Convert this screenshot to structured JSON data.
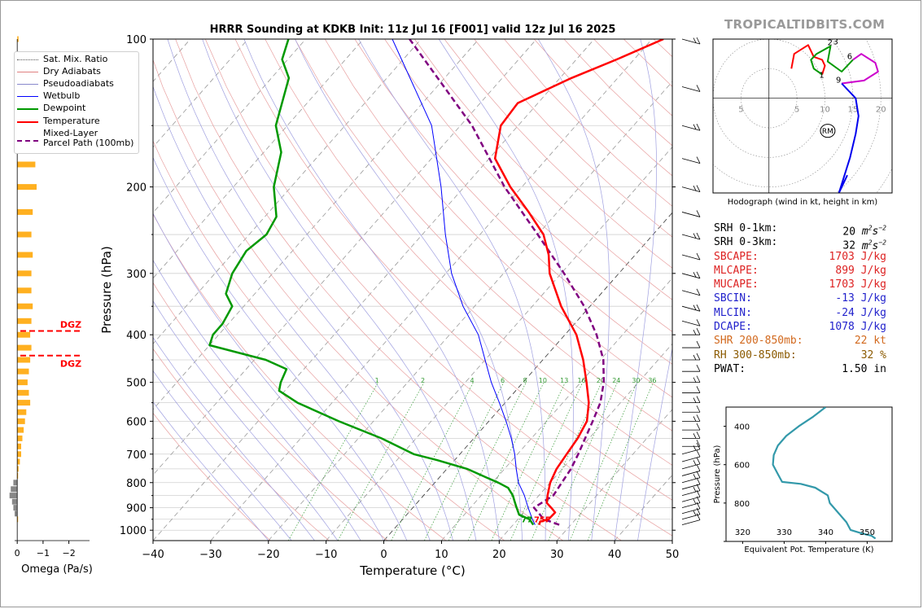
{
  "brand": "TROPICALTIDBITS.COM",
  "title": "HRRR Sounding at KDKB Init: 11z Jul 16 [F001] valid 12z Jul 16 2025",
  "skewt": {
    "xlabel": "Temperature (°C)",
    "ylabel": "Pressure (hPa)",
    "pressure_ticks": [
      "100",
      "200",
      "300",
      "400",
      "500",
      "600",
      "700",
      "800",
      "900",
      "1000"
    ],
    "temp_ticks": [
      "−40",
      "−30",
      "−20",
      "−10",
      "0",
      "10",
      "20",
      "30",
      "40",
      "50"
    ],
    "mix_ratio_labels": [
      "1",
      "2",
      "4",
      "6",
      "8",
      "10",
      "13",
      "16",
      "20",
      "24",
      "30",
      "36"
    ],
    "surface_temp_label": "75F",
    "surface_dew_label": "77",
    "legend": [
      {
        "label": "Sat. Mix. Ratio",
        "color": "#555555",
        "style": "dotted"
      },
      {
        "label": "Dry Adiabats",
        "color": "#e08080",
        "style": "solid"
      },
      {
        "label": "Pseudoadiabats",
        "color": "#8888cc",
        "style": "solid"
      },
      {
        "label": "Wetbulb",
        "color": "#0000ff",
        "style": "solid"
      },
      {
        "label": "Dewpoint",
        "color": "#009900",
        "style": "solid"
      },
      {
        "label": "Temperature",
        "color": "#ff0000",
        "style": "solid"
      },
      {
        "label": "Mixed-Layer\nParcel Path (100mb)",
        "color": "#800080",
        "style": "dashed"
      }
    ]
  },
  "omega": {
    "xlabel": "Omega (Pa/s)",
    "ticks": [
      "0",
      "−1",
      "−2"
    ],
    "dgz_label": "DGZ"
  },
  "hodograph": {
    "caption": "Hodograph (wind in kt, height in km)",
    "ring_labels": [
      "5",
      "5",
      "10",
      "15",
      "20"
    ],
    "height_labels": [
      "1",
      "2",
      "3",
      "6",
      "9"
    ],
    "rm_label": "RM"
  },
  "theta_e": {
    "xlabel": "Equivalent Pot. Temperature (K)",
    "ylabel": "Pressure (hPa)",
    "xticks": [
      "320",
      "330",
      "340",
      "350"
    ],
    "yticks": [
      "400",
      "600",
      "800"
    ]
  },
  "params": [
    {
      "label": "SRH 0-1km:",
      "value": "20",
      "unit": "m2s-2",
      "color": "#000000"
    },
    {
      "label": "SRH 0-3km:",
      "value": "32",
      "unit": "m2s-2",
      "color": "#000000"
    },
    {
      "label": "SBCAPE:",
      "value": "1703 J/kg",
      "color": "#dd2222"
    },
    {
      "label": "MLCAPE:",
      "value": "899 J/kg",
      "color": "#dd2222"
    },
    {
      "label": "MUCAPE:",
      "value": "1703 J/kg",
      "color": "#dd2222"
    },
    {
      "label": "SBCIN:",
      "value": "-13 J/kg",
      "color": "#2222cc"
    },
    {
      "label": "MLCIN:",
      "value": "-24 J/kg",
      "color": "#2222cc"
    },
    {
      "label": "DCAPE:",
      "value": "1078 J/kg",
      "color": "#2222cc"
    },
    {
      "label": "SHR 200-850mb:",
      "value": "22 kt",
      "color": "#d2691e"
    },
    {
      "label": "RH 300-850mb:",
      "value": "32 %",
      "color": "#8b5a00"
    },
    {
      "label": "PWAT:",
      "value": "1.50 in",
      "color": "#000000"
    }
  ],
  "chart_data": [
    {
      "type": "line",
      "name": "skew-t",
      "yscale": "log-pressure",
      "ylim": [
        1050,
        100
      ],
      "xlim": [
        -40,
        50
      ],
      "series": [
        {
          "name": "Temperature",
          "color": "#ff0000",
          "points": [
            [
              975,
              24.5
            ],
            [
              960,
              24.2
            ],
            [
              950,
              25.3
            ],
            [
              920,
              25.4
            ],
            [
              900,
              24.0
            ],
            [
              880,
              22.5
            ],
            [
              850,
              21.5
            ],
            [
              800,
              20.0
            ],
            [
              750,
              19.0
            ],
            [
              700,
              18.5
            ],
            [
              650,
              18.0
            ],
            [
              600,
              17.0
            ],
            [
              550,
              14.5
            ],
            [
              500,
              11.0
            ],
            [
              450,
              7.0
            ],
            [
              400,
              2.0
            ],
            [
              350,
              -5.0
            ],
            [
              300,
              -12.0
            ],
            [
              275,
              -15.0
            ],
            [
              250,
              -19.0
            ],
            [
              225,
              -25.0
            ],
            [
              200,
              -32.0
            ],
            [
              175,
              -39.0
            ],
            [
              150,
              -43.0
            ],
            [
              135,
              -43.5
            ],
            [
              120,
              -38.0
            ],
            [
              110,
              -33.0
            ],
            [
              100,
              -28.0
            ]
          ]
        },
        {
          "name": "Dewpoint",
          "color": "#009900",
          "points": [
            [
              975,
              23.5
            ],
            [
              950,
              22.0
            ],
            [
              930,
              19.5
            ],
            [
              900,
              18.0
            ],
            [
              870,
              16.5
            ],
            [
              850,
              15.5
            ],
            [
              820,
              13.5
            ],
            [
              800,
              11.0
            ],
            [
              780,
              8.0
            ],
            [
              750,
              3.5
            ],
            [
              720,
              -3.0
            ],
            [
              700,
              -8.0
            ],
            [
              650,
              -16.0
            ],
            [
              600,
              -26.0
            ],
            [
              550,
              -36.0
            ],
            [
              520,
              -41.0
            ],
            [
              500,
              -42.0
            ],
            [
              470,
              -43.0
            ],
            [
              450,
              -48.0
            ],
            [
              420,
              -60.0
            ],
            [
              400,
              -61.0
            ],
            [
              380,
              -61.0
            ],
            [
              350,
              -62.0
            ],
            [
              330,
              -65.0
            ],
            [
              300,
              -67.0
            ],
            [
              270,
              -68.0
            ],
            [
              250,
              -67.0
            ],
            [
              230,
              -68.0
            ],
            [
              200,
              -73.0
            ],
            [
              170,
              -77.0
            ],
            [
              150,
              -82.0
            ],
            [
              120,
              -87.0
            ],
            [
              110,
              -91.0
            ],
            [
              100,
              -93.0
            ]
          ]
        },
        {
          "name": "Wetbulb",
          "color": "#0000ff",
          "points": [
            [
              975,
              23.8
            ],
            [
              950,
              22.5
            ],
            [
              900,
              20.0
            ],
            [
              850,
              17.5
            ],
            [
              800,
              14.5
            ],
            [
              750,
              12.0
            ],
            [
              700,
              9.5
            ],
            [
              650,
              6.5
            ],
            [
              600,
              3.0
            ],
            [
              550,
              -1.0
            ],
            [
              500,
              -5.5
            ],
            [
              450,
              -10.0
            ],
            [
              400,
              -15.0
            ],
            [
              350,
              -22.0
            ],
            [
              300,
              -29.0
            ],
            [
              250,
              -36.0
            ],
            [
              200,
              -44.0
            ],
            [
              150,
              -55.0
            ],
            [
              100,
              -75.0
            ]
          ]
        },
        {
          "name": "Mixed-Layer Parcel Path (100mb)",
          "color": "#800080",
          "points": [
            [
              975,
              28.0
            ],
            [
              950,
              24.5
            ],
            [
              900,
              21.0
            ],
            [
              850,
              22.5
            ],
            [
              800,
              22.0
            ],
            [
              750,
              21.5
            ],
            [
              700,
              20.5
            ],
            [
              650,
              19.3
            ],
            [
              600,
              18.0
            ],
            [
              550,
              16.5
            ],
            [
              500,
              14.0
            ],
            [
              450,
              10.5
            ],
            [
              400,
              5.5
            ],
            [
              350,
              -1.0
            ],
            [
              300,
              -9.5
            ],
            [
              250,
              -20.0
            ],
            [
              200,
              -33.0
            ],
            [
              150,
              -48.0
            ],
            [
              100,
              -72.0
            ]
          ]
        }
      ]
    },
    {
      "type": "bar",
      "name": "omega",
      "xlim": [
        0.1,
        -2.8
      ],
      "levels_hPa": [
        100,
        120,
        145,
        165,
        180,
        200,
        225,
        250,
        275,
        300,
        325,
        350,
        375,
        400,
        425,
        450,
        475,
        500,
        525,
        550,
        575,
        600,
        625,
        650,
        675,
        700,
        725,
        750,
        775,
        800,
        825,
        850,
        875,
        900,
        925,
        950
      ],
      "values": [
        -0.05,
        -0.3,
        -0.6,
        -0.7,
        -0.7,
        -0.75,
        -0.6,
        -0.55,
        -0.6,
        -0.55,
        -0.55,
        -0.6,
        -0.55,
        -0.5,
        -0.55,
        -0.5,
        -0.45,
        -0.4,
        -0.45,
        -0.5,
        -0.35,
        -0.3,
        -0.25,
        -0.2,
        -0.15,
        -0.15,
        -0.1,
        -0.05,
        0.0,
        0.15,
        0.25,
        0.3,
        0.2,
        0.15,
        0.1,
        0.0
      ],
      "dgz_levels_hPa": [
        393,
        441
      ]
    },
    {
      "type": "line",
      "name": "hodograph",
      "xlim": [
        -10,
        22
      ],
      "ylim": [
        -16,
        10
      ],
      "series": [
        {
          "name": "0-1 km",
          "color": "#ff0000",
          "points": [
            [
              4,
              5
            ],
            [
              4.5,
              7.5
            ],
            [
              7,
              9
            ],
            [
              8,
              7
            ],
            [
              9.5,
              6.5
            ],
            [
              10,
              5.5
            ],
            [
              9.5,
              4
            ]
          ]
        },
        {
          "name": "1-3 km",
          "color": "#009900",
          "points": [
            [
              9.5,
              4
            ],
            [
              8,
              5
            ],
            [
              7.5,
              6.5
            ],
            [
              8.5,
              7.5
            ],
            [
              11,
              8.8
            ],
            [
              10.5,
              6.2
            ],
            [
              13,
              4.5
            ],
            [
              15,
              6.5
            ]
          ]
        },
        {
          "name": "3-9 km",
          "color": "#cc00cc",
          "points": [
            [
              15,
              6.5
            ],
            [
              16.5,
              7.5
            ],
            [
              19,
              6
            ],
            [
              19.5,
              4.5
            ],
            [
              17,
              3
            ],
            [
              13,
              2.5
            ]
          ]
        },
        {
          "name": "9+ km",
          "color": "#0000ee",
          "points": [
            [
              13,
              2.5
            ],
            [
              15.5,
              0
            ],
            [
              16,
              -3
            ],
            [
              15.5,
              -6
            ],
            [
              14.5,
              -10
            ],
            [
              12.5,
              -16
            ],
            [
              14,
              -13
            ]
          ]
        }
      ],
      "rm": [
        10.5,
        -5.5
      ]
    },
    {
      "type": "line",
      "name": "theta-e",
      "xlim": [
        316,
        356
      ],
      "ylim": [
        1000,
        300
      ],
      "series": [
        {
          "name": "Equivalent Pot. Temperature",
          "color": "#3399aa",
          "points": [
            [
              340.0,
              300
            ],
            [
              337.0,
              350
            ],
            [
              333.5,
              400
            ],
            [
              330.5,
              450
            ],
            [
              328.5,
              500
            ],
            [
              327.5,
              550
            ],
            [
              327.3,
              600
            ],
            [
              328.5,
              650
            ],
            [
              329.5,
              690
            ],
            [
              334.0,
              700
            ],
            [
              337.5,
              720
            ],
            [
              340.5,
              760
            ],
            [
              341.0,
              800
            ],
            [
              343.0,
              850
            ],
            [
              345.0,
              900
            ],
            [
              346.0,
              940
            ],
            [
              349.0,
              960
            ],
            [
              351.0,
              970
            ],
            [
              352.0,
              985
            ]
          ]
        }
      ]
    }
  ]
}
